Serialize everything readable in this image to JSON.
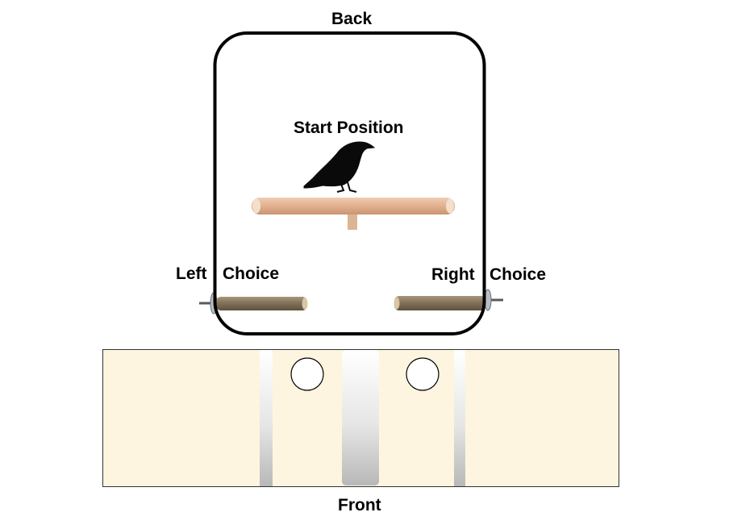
{
  "labels": {
    "back": "Back",
    "start_position": "Start Position",
    "left": "Left",
    "left_choice": "Choice",
    "right": "Right",
    "right_choice": "Choice",
    "front": "Front"
  },
  "colors": {
    "outline": "#000000",
    "panel_fill": "#fdf5e0",
    "panel_border": "#333333",
    "perch_wood": "#e4b896",
    "stick_wood": "#8a7a62",
    "bird": "#0a0a0a"
  },
  "icons": {
    "bird": "crow-silhouette-icon",
    "start_perch": "t-perch-icon",
    "left_perch": "branch-perch-icon",
    "right_perch": "branch-perch-icon"
  }
}
